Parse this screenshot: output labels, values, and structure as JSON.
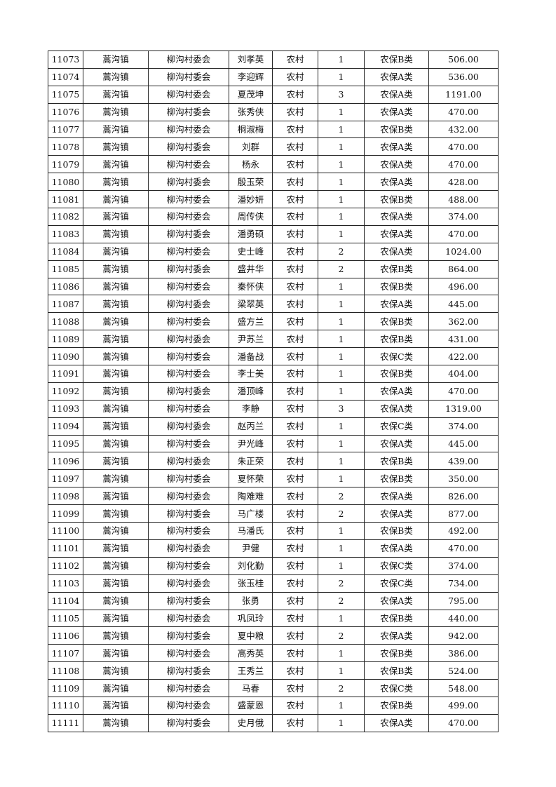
{
  "table": {
    "rows": [
      [
        "11073",
        "蒿沟镇",
        "柳沟村委会",
        "刘孝英",
        "农村",
        "1",
        "农保B类",
        "506.00"
      ],
      [
        "11074",
        "蒿沟镇",
        "柳沟村委会",
        "李迎辉",
        "农村",
        "1",
        "农保A类",
        "536.00"
      ],
      [
        "11075",
        "蒿沟镇",
        "柳沟村委会",
        "夏茂坤",
        "农村",
        "3",
        "农保A类",
        "1191.00"
      ],
      [
        "11076",
        "蒿沟镇",
        "柳沟村委会",
        "张秀侠",
        "农村",
        "1",
        "农保A类",
        "470.00"
      ],
      [
        "11077",
        "蒿沟镇",
        "柳沟村委会",
        "桐淑梅",
        "农村",
        "1",
        "农保B类",
        "432.00"
      ],
      [
        "11078",
        "蒿沟镇",
        "柳沟村委会",
        "刘群",
        "农村",
        "1",
        "农保A类",
        "470.00"
      ],
      [
        "11079",
        "蒿沟镇",
        "柳沟村委会",
        "杨永",
        "农村",
        "1",
        "农保A类",
        "470.00"
      ],
      [
        "11080",
        "蒿沟镇",
        "柳沟村委会",
        "殷玉荣",
        "农村",
        "1",
        "农保A类",
        "428.00"
      ],
      [
        "11081",
        "蒿沟镇",
        "柳沟村委会",
        "潘妙妍",
        "农村",
        "1",
        "农保B类",
        "488.00"
      ],
      [
        "11082",
        "蒿沟镇",
        "柳沟村委会",
        "周传侠",
        "农村",
        "1",
        "农保A类",
        "374.00"
      ],
      [
        "11083",
        "蒿沟镇",
        "柳沟村委会",
        "潘勇硕",
        "农村",
        "1",
        "农保A类",
        "470.00"
      ],
      [
        "11084",
        "蒿沟镇",
        "柳沟村委会",
        "史士峰",
        "农村",
        "2",
        "农保A类",
        "1024.00"
      ],
      [
        "11085",
        "蒿沟镇",
        "柳沟村委会",
        "盛井华",
        "农村",
        "2",
        "农保B类",
        "864.00"
      ],
      [
        "11086",
        "蒿沟镇",
        "柳沟村委会",
        "秦怀侠",
        "农村",
        "1",
        "农保B类",
        "496.00"
      ],
      [
        "11087",
        "蒿沟镇",
        "柳沟村委会",
        "梁翠英",
        "农村",
        "1",
        "农保A类",
        "445.00"
      ],
      [
        "11088",
        "蒿沟镇",
        "柳沟村委会",
        "盛方兰",
        "农村",
        "1",
        "农保B类",
        "362.00"
      ],
      [
        "11089",
        "蒿沟镇",
        "柳沟村委会",
        "尹苏兰",
        "农村",
        "1",
        "农保B类",
        "431.00"
      ],
      [
        "11090",
        "蒿沟镇",
        "柳沟村委会",
        "潘备战",
        "农村",
        "1",
        "农保C类",
        "422.00"
      ],
      [
        "11091",
        "蒿沟镇",
        "柳沟村委会",
        "李士美",
        "农村",
        "1",
        "农保B类",
        "404.00"
      ],
      [
        "11092",
        "蒿沟镇",
        "柳沟村委会",
        "潘顶峰",
        "农村",
        "1",
        "农保A类",
        "470.00"
      ],
      [
        "11093",
        "蒿沟镇",
        "柳沟村委会",
        "李静",
        "农村",
        "3",
        "农保A类",
        "1319.00"
      ],
      [
        "11094",
        "蒿沟镇",
        "柳沟村委会",
        "赵丙兰",
        "农村",
        "1",
        "农保C类",
        "374.00"
      ],
      [
        "11095",
        "蒿沟镇",
        "柳沟村委会",
        "尹光峰",
        "农村",
        "1",
        "农保A类",
        "445.00"
      ],
      [
        "11096",
        "蒿沟镇",
        "柳沟村委会",
        "朱正荣",
        "农村",
        "1",
        "农保B类",
        "439.00"
      ],
      [
        "11097",
        "蒿沟镇",
        "柳沟村委会",
        "夏怀荣",
        "农村",
        "1",
        "农保B类",
        "350.00"
      ],
      [
        "11098",
        "蒿沟镇",
        "柳沟村委会",
        "陶难难",
        "农村",
        "2",
        "农保A类",
        "826.00"
      ],
      [
        "11099",
        "蒿沟镇",
        "柳沟村委会",
        "马广楼",
        "农村",
        "2",
        "农保A类",
        "877.00"
      ],
      [
        "11100",
        "蒿沟镇",
        "柳沟村委会",
        "马潘氏",
        "农村",
        "1",
        "农保B类",
        "492.00"
      ],
      [
        "11101",
        "蒿沟镇",
        "柳沟村委会",
        "尹健",
        "农村",
        "1",
        "农保A类",
        "470.00"
      ],
      [
        "11102",
        "蒿沟镇",
        "柳沟村委会",
        "刘化勤",
        "农村",
        "1",
        "农保C类",
        "374.00"
      ],
      [
        "11103",
        "蒿沟镇",
        "柳沟村委会",
        "张玉桂",
        "农村",
        "2",
        "农保C类",
        "734.00"
      ],
      [
        "11104",
        "蒿沟镇",
        "柳沟村委会",
        "张勇",
        "农村",
        "2",
        "农保A类",
        "795.00"
      ],
      [
        "11105",
        "蒿沟镇",
        "柳沟村委会",
        "巩凤玲",
        "农村",
        "1",
        "农保B类",
        "440.00"
      ],
      [
        "11106",
        "蒿沟镇",
        "柳沟村委会",
        "夏中粮",
        "农村",
        "2",
        "农保A类",
        "942.00"
      ],
      [
        "11107",
        "蒿沟镇",
        "柳沟村委会",
        "高秀英",
        "农村",
        "1",
        "农保B类",
        "386.00"
      ],
      [
        "11108",
        "蒿沟镇",
        "柳沟村委会",
        "王秀兰",
        "农村",
        "1",
        "农保B类",
        "524.00"
      ],
      [
        "11109",
        "蒿沟镇",
        "柳沟村委会",
        "马春",
        "农村",
        "2",
        "农保C类",
        "548.00"
      ],
      [
        "11110",
        "蒿沟镇",
        "柳沟村委会",
        "盛蒙恩",
        "农村",
        "1",
        "农保B类",
        "499.00"
      ],
      [
        "11111",
        "蒿沟镇",
        "柳沟村委会",
        "史月俄",
        "农村",
        "1",
        "农保A类",
        "470.00"
      ]
    ]
  }
}
